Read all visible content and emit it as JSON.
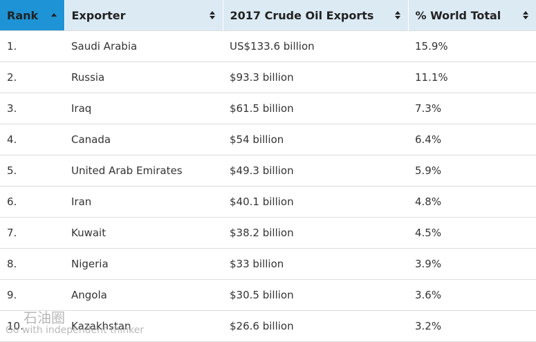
{
  "table": {
    "headers": [
      "Rank",
      "Exporter",
      "2017 Crude Oil Exports",
      "% World Total"
    ],
    "rows": [
      [
        "1.",
        "Saudi Arabia",
        "US$133.6 billion",
        "15.9%"
      ],
      [
        "2.",
        "Russia",
        "$93.3 billion",
        "11.1%"
      ],
      [
        "3.",
        "Iraq",
        "$61.5 billion",
        "7.3%"
      ],
      [
        "4.",
        "Canada",
        "$54 billion",
        "6.4%"
      ],
      [
        "5.",
        "United Arab Emirates",
        "$49.3 billion",
        "5.9%"
      ],
      [
        "6.",
        "Iran",
        "$40.1 billion",
        "4.8%"
      ],
      [
        "7.",
        "Kuwait",
        "$38.2 billion",
        "4.5%"
      ],
      [
        "8.",
        "Nigeria",
        "$33 billion",
        "3.9%"
      ],
      [
        "9.",
        "Angola",
        "$30.5 billion",
        "3.6%"
      ],
      [
        "10.",
        "Kazakhstan",
        "$26.6 billion",
        "3.2%"
      ]
    ]
  },
  "watermark": {
    "brand": "石油圈",
    "tagline": "Go with independent thinker"
  }
}
